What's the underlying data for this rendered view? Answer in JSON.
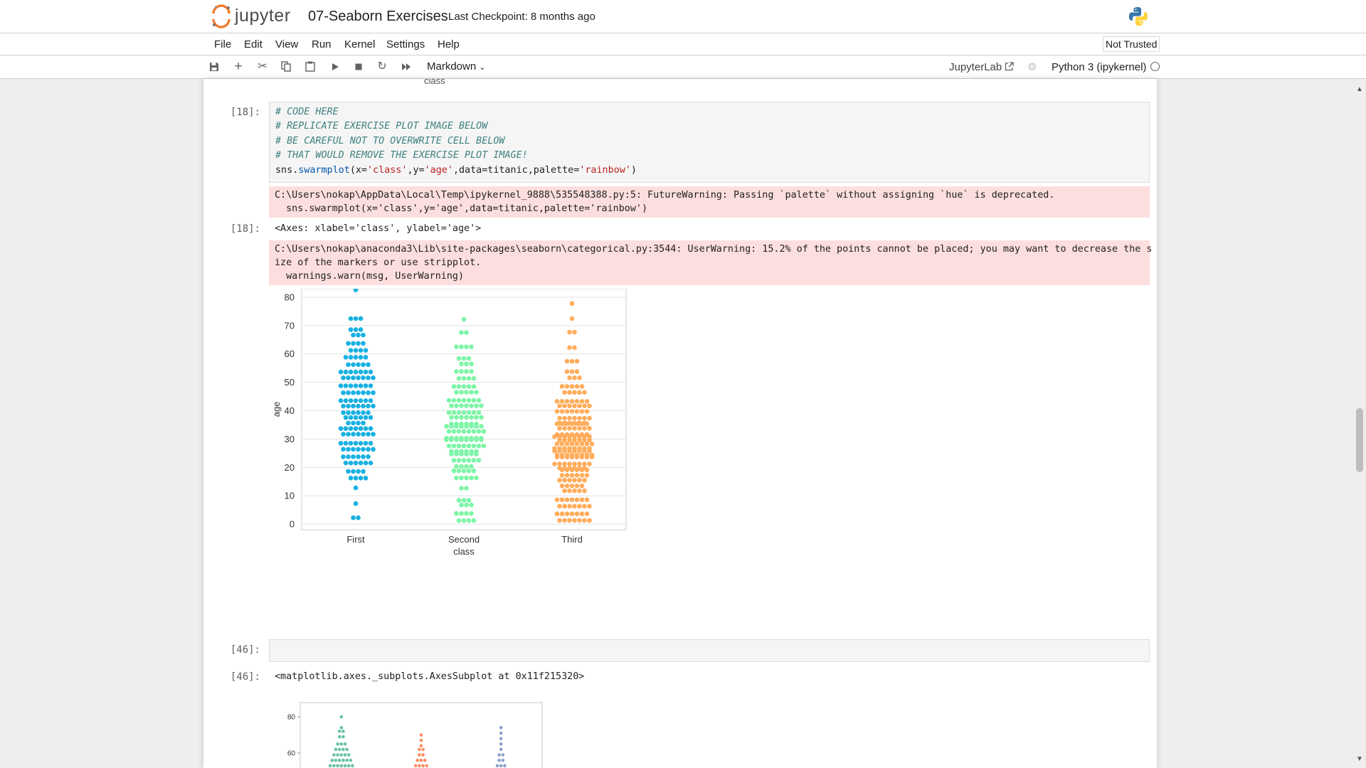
{
  "header": {
    "logo_text": "jupyter",
    "notebook_name": "07-Seaborn Exercises",
    "checkpoint": "Last Checkpoint: 8 months ago"
  },
  "menu": {
    "items": [
      "File",
      "Edit",
      "View",
      "Run",
      "Kernel",
      "Settings",
      "Help"
    ],
    "trust_status": "Not Trusted"
  },
  "toolbar": {
    "icons": [
      "save-icon",
      "add-icon",
      "cut-icon",
      "copy-icon",
      "paste-icon",
      "run-icon",
      "stop-icon",
      "restart-icon",
      "fast-forward-icon"
    ],
    "cell_type": "Markdown",
    "jupyterlab_link": "JupyterLab",
    "kernel_name": "Python 3 (ipykernel)"
  },
  "cells": {
    "prev_label": "class",
    "cell18": {
      "prompt": "[18]:",
      "code_comments": [
        "# CODE HERE",
        "# REPLICATE EXERCISE PLOT IMAGE BELOW",
        "# BE CAREFUL NOT TO OVERWRITE CELL BELOW",
        "# THAT WOULD REMOVE THE EXERCISE PLOT IMAGE!"
      ],
      "code_parts": [
        "sns.",
        "swarmplot",
        "(x=",
        "'class'",
        ",y=",
        "'age'",
        ",data=titanic,palette=",
        "'rainbow'",
        ")"
      ],
      "stderr1": [
        "C:\\Users\\nokap\\AppData\\Local\\Temp\\ipykernel_9888\\535548388.py:5: FutureWarning: Passing `palette` without assigning `hue` is deprecated.",
        "  sns.swarmplot(x='class',y='age',data=titanic,palette='rainbow')"
      ],
      "out_prompt": "[18]:",
      "out_text": "<Axes: xlabel='class', ylabel='age'>",
      "stderr2": [
        "C:\\Users\\nokap\\anaconda3\\Lib\\site-packages\\seaborn\\categorical.py:3544: UserWarning: 15.2% of the points cannot be placed; you may want to decrease the s",
        "ize of the markers or use stripplot.",
        "  warnings.warn(msg, UserWarning)"
      ]
    },
    "cell46": {
      "prompt": "[46]:",
      "out_prompt": "[46]:",
      "out_text": "<matplotlib.axes._subplots.AxesSubplot at 0x11f215320>"
    }
  },
  "chart_data": [
    {
      "type": "scatter",
      "kind": "swarm",
      "xlabel": "class",
      "ylabel": "age",
      "categories": [
        "First",
        "Second",
        "Third"
      ],
      "yticks": [
        0,
        10,
        20,
        30,
        40,
        50,
        60,
        70,
        80
      ],
      "ylim": [
        -2,
        83
      ],
      "grid": true,
      "colors": [
        "#17b1e2",
        "#7ef5a8",
        "#ffad5c"
      ],
      "series": [
        {
          "category": "First",
          "age_range": [
            0.92,
            80
          ],
          "distribution": [
            [
              0,
              2
            ],
            [
              5,
              1
            ],
            [
              10,
              1
            ],
            [
              15,
              8
            ],
            [
              20,
              12
            ],
            [
              25,
              14
            ],
            [
              30,
              14
            ],
            [
              35,
              16
            ],
            [
              40,
              14
            ],
            [
              45,
              14
            ],
            [
              50,
              14
            ],
            [
              55,
              10
            ],
            [
              60,
              8
            ],
            [
              65,
              6
            ],
            [
              70,
              3
            ],
            [
              75,
              0
            ],
            [
              80,
              1
            ]
          ]
        },
        {
          "category": "Second",
          "age_range": [
            0.67,
            70
          ],
          "distribution": [
            [
              0,
              8
            ],
            [
              5,
              6
            ],
            [
              10,
              2
            ],
            [
              15,
              10
            ],
            [
              20,
              16
            ],
            [
              25,
              22
            ],
            [
              30,
              24
            ],
            [
              35,
              20
            ],
            [
              40,
              14
            ],
            [
              45,
              10
            ],
            [
              50,
              8
            ],
            [
              55,
              6
            ],
            [
              60,
              4
            ],
            [
              65,
              2
            ],
            [
              70,
              1
            ]
          ]
        },
        {
          "category": "Third",
          "age_range": [
            0.42,
            74
          ],
          "distribution": [
            [
              0,
              14
            ],
            [
              5,
              14
            ],
            [
              10,
              10
            ],
            [
              15,
              18
            ],
            [
              20,
              30
            ],
            [
              25,
              32
            ],
            [
              30,
              28
            ],
            [
              35,
              20
            ],
            [
              40,
              14
            ],
            [
              45,
              10
            ],
            [
              50,
              6
            ],
            [
              55,
              3
            ],
            [
              60,
              2
            ],
            [
              65,
              2
            ],
            [
              70,
              1
            ],
            [
              75,
              1
            ]
          ]
        }
      ]
    },
    {
      "type": "scatter",
      "kind": "swarm",
      "yticks": [
        60,
        80
      ],
      "colors": [
        "#66c2a5",
        "#fc8d62",
        "#8da0cb"
      ],
      "grid": false
    }
  ]
}
